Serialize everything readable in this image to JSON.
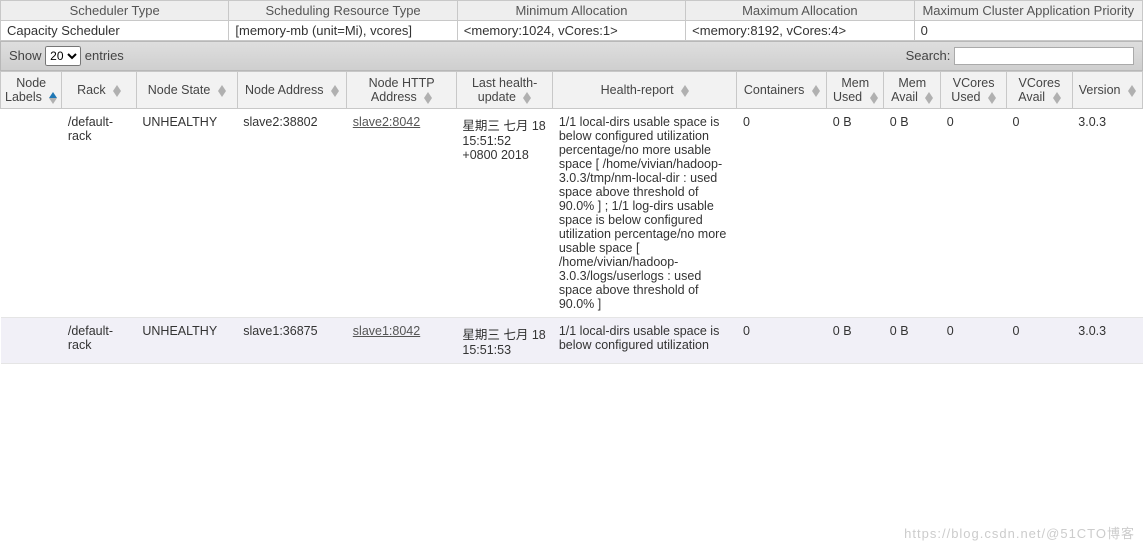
{
  "info": {
    "headers": [
      "Scheduler Type",
      "Scheduling Resource Type",
      "Minimum Allocation",
      "Maximum Allocation",
      "Maximum Cluster Application Priority"
    ],
    "values": [
      "Capacity Scheduler",
      "[memory-mb (unit=Mi), vcores]",
      "<memory:1024, vCores:1>",
      "<memory:8192, vCores:4>",
      "0"
    ]
  },
  "toolbar": {
    "show_label": "Show",
    "entries_label": "entries",
    "page_size": "20",
    "search_label": "Search:"
  },
  "columns": [
    {
      "label": "Node Labels",
      "key": "labels",
      "cls": "col-nodelabels",
      "asc": true
    },
    {
      "label": "Rack",
      "key": "rack",
      "cls": "col-rack"
    },
    {
      "label": "Node State",
      "key": "state",
      "cls": "col-state"
    },
    {
      "label": "Node Address",
      "key": "addr",
      "cls": "col-addr"
    },
    {
      "label": "Node HTTP Address",
      "key": "http",
      "cls": "col-http",
      "link": true
    },
    {
      "label": "Last health-update",
      "key": "update",
      "cls": "col-update"
    },
    {
      "label": "Health-report",
      "key": "report",
      "cls": "col-report"
    },
    {
      "label": "Containers",
      "key": "cont",
      "cls": "col-cont"
    },
    {
      "label": "Mem Used",
      "key": "memu",
      "cls": "col-memu"
    },
    {
      "label": "Mem Avail",
      "key": "mema",
      "cls": "col-mema"
    },
    {
      "label": "VCores Used",
      "key": "vcu",
      "cls": "col-vcu"
    },
    {
      "label": "VCores Avail",
      "key": "vca",
      "cls": "col-vca"
    },
    {
      "label": "Version",
      "key": "ver",
      "cls": "col-ver"
    }
  ],
  "rows": [
    {
      "labels": "",
      "rack": "/default-rack",
      "state": "UNHEALTHY",
      "addr": "slave2:38802",
      "http": "slave2:8042",
      "update": "星期三 七月 18 15:51:52 +0800 2018",
      "report": "1/1 local-dirs usable space is below configured utilization percentage/no more usable space [ /home/vivian/hadoop-3.0.3/tmp/nm-local-dir : used space above threshold of 90.0% ] ; 1/1 log-dirs usable space is below configured utilization percentage/no more usable space [ /home/vivian/hadoop-3.0.3/logs/userlogs : used space above threshold of 90.0% ]",
      "cont": "0",
      "memu": "0 B",
      "mema": "0 B",
      "vcu": "0",
      "vca": "0",
      "ver": "3.0.3"
    },
    {
      "labels": "",
      "rack": "/default-rack",
      "state": "UNHEALTHY",
      "addr": "slave1:36875",
      "http": "slave1:8042",
      "update": "星期三 七月 18 15:51:53",
      "report": "1/1 local-dirs usable space is below configured utilization",
      "cont": "0",
      "memu": "0 B",
      "mema": "0 B",
      "vcu": "0",
      "vca": "0",
      "ver": "3.0.3"
    }
  ],
  "watermark": "https://blog.csdn.net/@51CTO博客",
  "colors": {
    "header_bg": "#f2f2f2",
    "border": "#c8c8c8",
    "alt_row": "#f1f0f7",
    "link": "#555555",
    "sort_active": "#1f77b4",
    "sort_idle": "#b0b0b0"
  }
}
